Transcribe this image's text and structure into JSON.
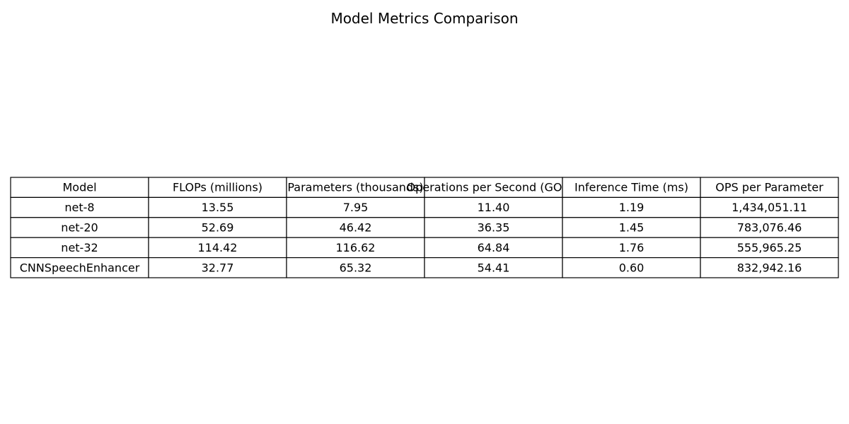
{
  "chart_data": {
    "type": "table",
    "title": "Model Metrics Comparison",
    "columns": [
      "Model",
      "FLOPs (millions)",
      "Parameters (thousands)",
      "Operations per Second (GOPS)",
      "Inference Time (ms)",
      "OPS per Parameter"
    ],
    "rows": [
      [
        "net-8",
        "13.55",
        "7.95",
        "11.40",
        "1.19",
        "1,434,051.11"
      ],
      [
        "net-20",
        "52.69",
        "46.42",
        "36.35",
        "1.45",
        "783,076.46"
      ],
      [
        "net-32",
        "114.42",
        "116.62",
        "64.84",
        "1.76",
        "555,965.25"
      ],
      [
        "CNNSpeechEnhancer",
        "32.77",
        "65.32",
        "54.41",
        "0.60",
        "832,942.16"
      ]
    ],
    "colors": {
      "border": "#000000",
      "cell_background": "#ffffff",
      "text": "#000000"
    }
  }
}
